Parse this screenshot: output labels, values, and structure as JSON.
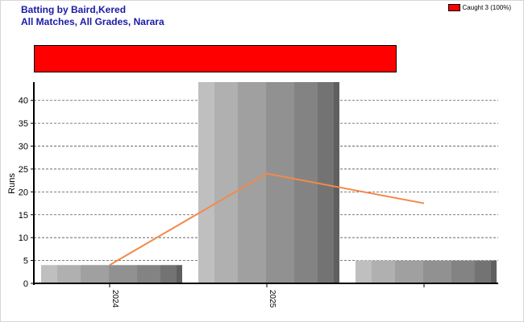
{
  "chart_data": {
    "type": "bar",
    "title": "Batting by Baird,Kered",
    "subtitle": "All Matches, All Grades, Narara",
    "ylabel": "Runs",
    "xlabel": "",
    "ylim": [
      0,
      44
    ],
    "yticks": [
      0,
      5,
      10,
      15,
      20,
      25,
      30,
      35,
      40
    ],
    "grid": true,
    "categories": [
      "2024",
      "2025",
      ""
    ],
    "values": [
      4,
      44,
      5
    ],
    "line": {
      "values": [
        4,
        24,
        17.5
      ],
      "color": "#f28a4b"
    },
    "legend": {
      "placement": "top-right",
      "entries": [
        {
          "label": "Caught 3 (100%)",
          "color": "#ff0000"
        }
      ]
    },
    "dismissal_summary": {
      "label": "Caught",
      "count": 3,
      "percent": 100
    }
  }
}
